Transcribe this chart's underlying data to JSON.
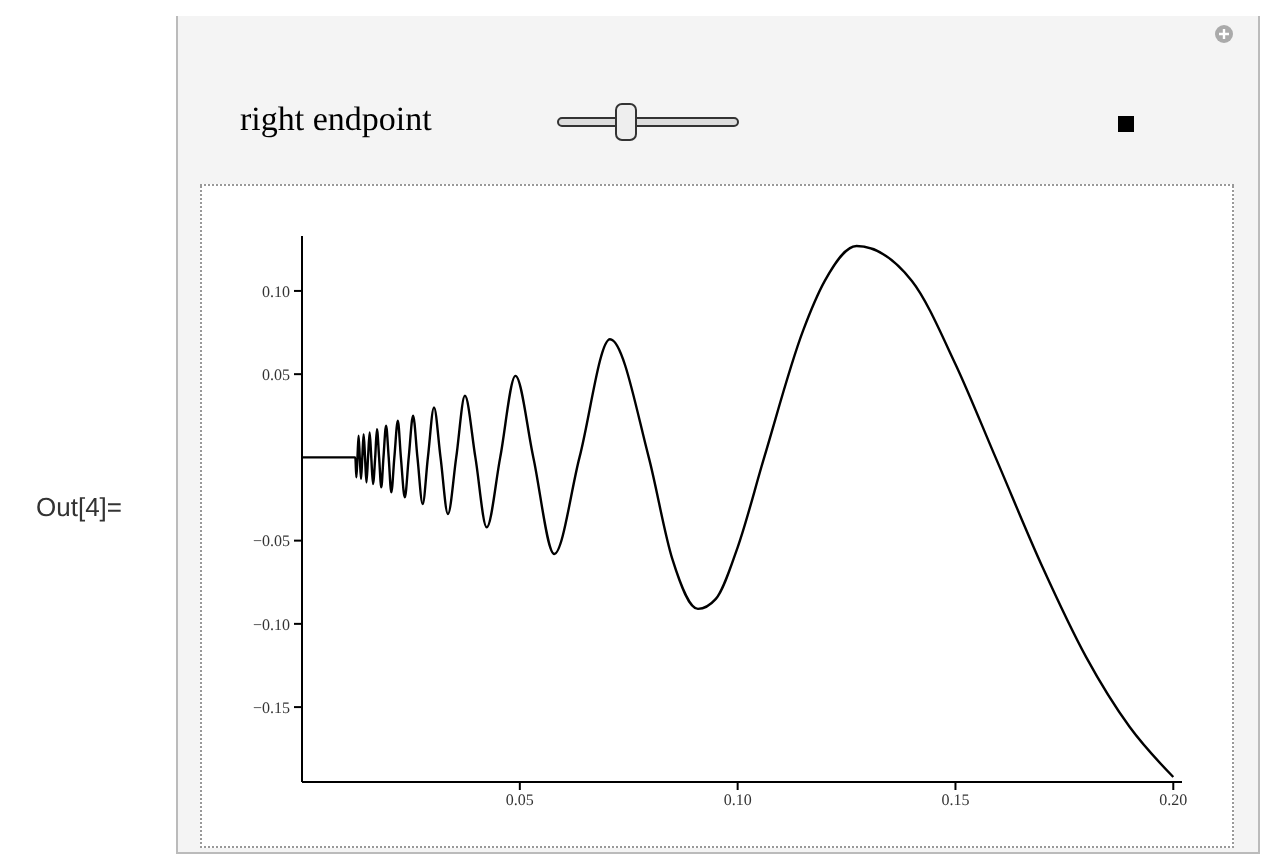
{
  "chart_data": {
    "type": "line",
    "annotations": [
      "right endpoint",
      "Out[4]="
    ],
    "xlim": [
      0,
      0.202
    ],
    "xticks": [
      0.05,
      {
        "value": 0.1,
        "label": "0.10"
      },
      0.15,
      {
        "value": 0.2,
        "label": "0.20"
      }
    ],
    "ylim": [
      -0.195,
      0.133
    ],
    "yticks": [
      {
        "value": 0.1,
        "label": "0.10"
      },
      0.05,
      {
        "value": -0.05,
        "label": "−0.05"
      },
      {
        "value": -0.1,
        "label": "−0.10"
      },
      {
        "value": -0.15,
        "label": "−0.15"
      }
    ],
    "marker": "none",
    "line_style": "solid",
    "series": [
      {
        "color": "#000000",
        "x": [
          0,
          0.01224,
          0.01248,
          0.01273,
          0.01299,
          0.01326,
          0.01355,
          0.01384,
          0.01415,
          0.01447,
          0.01479,
          0.01516,
          0.01553,
          0.0159,
          0.0163,
          0.0168,
          0.0172,
          0.0177,
          0.0182,
          0.0187,
          0.0193,
          0.0199,
          0.0205,
          0.0212,
          0.022,
          0.0227,
          0.0236,
          0.0245,
          0.0255,
          0.0265,
          0.0277,
          0.0289,
          0.0303,
          0.0318,
          0.0335,
          0.0354,
          0.0374,
          0.0398,
          0.0424,
          0.0455,
          0.049,
          0.0531,
          0.0579,
          0.0637,
          0.0707,
          0.0796,
          0.085,
          0.0909,
          0.095,
          0.1,
          0.1061,
          0.115,
          0.12,
          0.1273,
          0.14,
          0.15,
          0.1592,
          0.17,
          0.18,
          0.19,
          0.2
        ],
        "values": [
          0,
          0,
          -0.012,
          0,
          0.013,
          0,
          -0.013,
          0,
          0.014,
          0,
          -0.015,
          0,
          0.015,
          0,
          -0.016,
          0,
          0.017,
          0,
          -0.018,
          0,
          0.019,
          0,
          -0.021,
          0,
          0.022,
          0,
          -0.024,
          0,
          0.025,
          0,
          -0.028,
          0,
          0.03,
          0,
          -0.034,
          0,
          0.037,
          0,
          -0.042,
          0,
          0.049,
          0,
          -0.058,
          0,
          0.071,
          0,
          -0.061,
          -0.091,
          -0.085,
          -0.054,
          0,
          0.076,
          0.106,
          0.127,
          0.106,
          0.056,
          0,
          -0.066,
          -0.12,
          -0.162,
          -0.192
        ]
      }
    ]
  }
}
